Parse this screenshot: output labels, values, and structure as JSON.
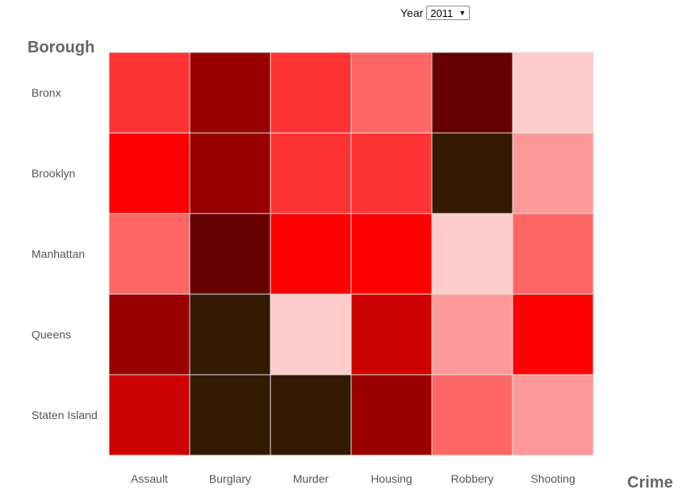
{
  "controls": {
    "year_label": "Year",
    "year_value": "2011"
  },
  "chart_data": {
    "type": "heatmap",
    "xlabel": "Crime",
    "ylabel": "Borough",
    "rows": [
      "Bronx",
      "Brooklyn",
      "Manhattan",
      "Queens",
      "Staten Island"
    ],
    "columns": [
      "Assault",
      "Burglary",
      "Murder",
      "Housing",
      "Robbery",
      "Shooting"
    ],
    "values": [
      [
        4,
        6,
        4,
        3,
        7,
        1
      ],
      [
        5,
        6,
        4,
        4,
        8,
        2
      ],
      [
        3,
        7,
        5,
        5,
        1,
        3
      ],
      [
        6,
        8,
        1,
        5.5,
        2,
        5
      ],
      [
        5.5,
        8,
        8,
        6,
        3,
        2
      ]
    ],
    "color_scale": {
      "1": "#ffcccc",
      "2": "#ff9999",
      "3": "#ff6666",
      "4": "#ff3333",
      "5": "#ff0000",
      "5.5": "#cc0000",
      "6": "#990000",
      "7": "#660000",
      "8": "#331900"
    },
    "grid": true
  }
}
